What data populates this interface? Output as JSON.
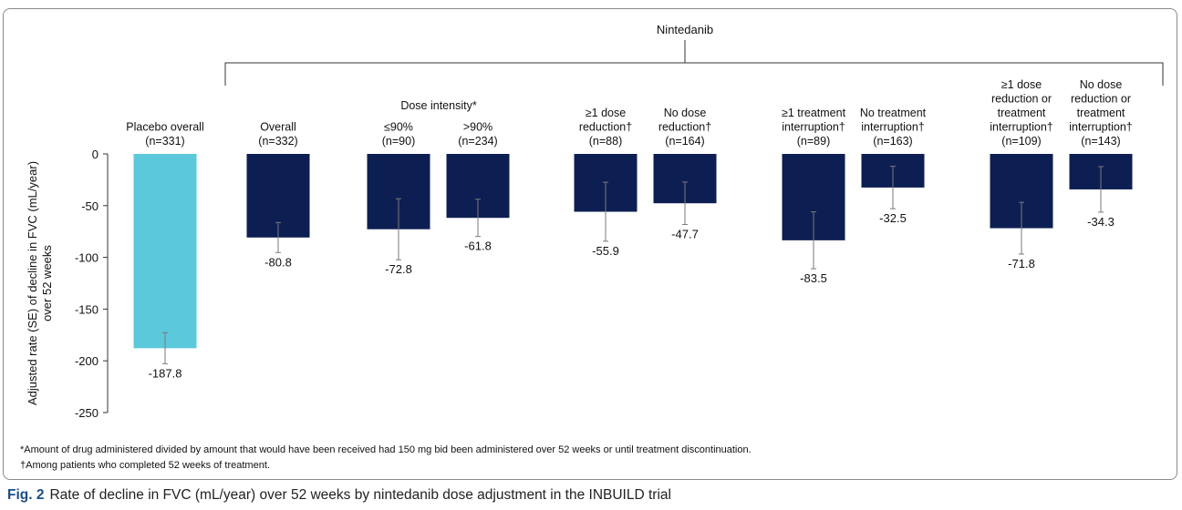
{
  "chart_data": {
    "type": "bar",
    "header_label": "Nintedanib",
    "group_labels": [
      "Dose intensity*"
    ],
    "ylabel_lines": [
      "Adjusted rate (SE) of decline in FVC (mL/year)",
      "over 52 weeks"
    ],
    "ylim": [
      -250,
      0
    ],
    "yticks": [
      0,
      -50,
      -100,
      -150,
      -200,
      -250
    ],
    "categories": [
      {
        "label_lines": [
          "Placebo overall",
          "(n=331)"
        ]
      },
      {
        "label_lines": [
          "Overall",
          "(n=332)"
        ]
      },
      {
        "label_lines": [
          "≤90%",
          "(n=90)"
        ]
      },
      {
        "label_lines": [
          ">90%",
          "(n=234)"
        ]
      },
      {
        "label_lines": [
          "≥1 dose",
          "reduction†",
          "(n=88)"
        ]
      },
      {
        "label_lines": [
          "No dose",
          "reduction†",
          "(n=164)"
        ]
      },
      {
        "label_lines": [
          "≥1 treatment",
          "interruption†",
          "(n=89)"
        ]
      },
      {
        "label_lines": [
          "No treatment",
          "interruption†",
          "(n=163)"
        ]
      },
      {
        "label_lines": [
          "≥1 dose",
          "reduction or",
          "treatment",
          "interruption†",
          "(n=109)"
        ]
      },
      {
        "label_lines": [
          "No dose",
          "reduction or",
          "treatment",
          "interruption†",
          "(n=143)"
        ]
      }
    ],
    "values": [
      -187.8,
      -80.8,
      -72.8,
      -61.8,
      -55.9,
      -47.7,
      -83.5,
      -32.5,
      -71.8,
      -34.3
    ],
    "value_labels": [
      "-187.8",
      "-80.8",
      "-72.8",
      "-61.8",
      "-55.9",
      "-47.7",
      "-83.5",
      "-32.5",
      "-71.8",
      "-34.3"
    ],
    "se": [
      15.0,
      14.5,
      29.5,
      18.0,
      28.5,
      20.5,
      27.5,
      20.5,
      25.0,
      22.0
    ],
    "colors": [
      "#5bc8dc",
      "#0d1f52",
      "#0d1f52",
      "#0d1f52",
      "#0d1f52",
      "#0d1f52",
      "#0d1f52",
      "#0d1f52",
      "#0d1f52",
      "#0d1f52"
    ],
    "grid": false,
    "legend": "none"
  },
  "footnotes": [
    "*Amount of drug administered divided by amount that would have been received had 150 mg bid been administered over 52 weeks or until treatment discontinuation.",
    "†Among patients who completed 52 weeks of treatment."
  ],
  "caption": {
    "fig_label": "Fig. 2",
    "text": "Rate of decline in FVC (mL/year) over 52 weeks by nintedanib dose adjustment in the INBUILD trial"
  }
}
